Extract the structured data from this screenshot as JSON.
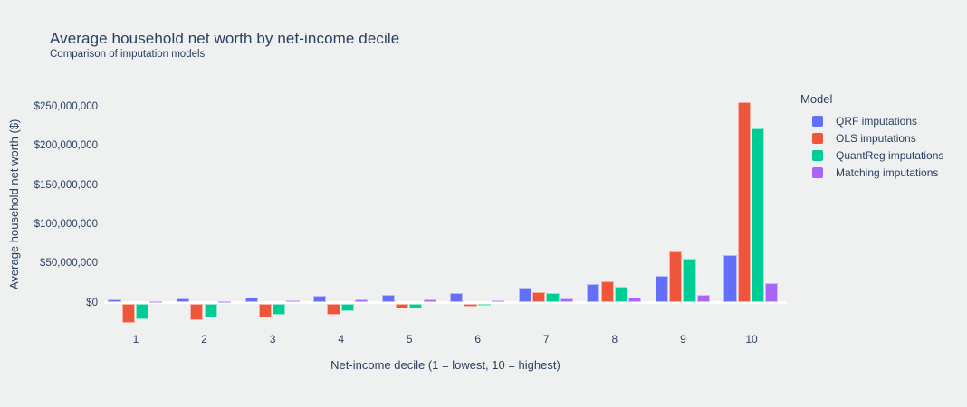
{
  "title": "Average household net worth by net-income decile",
  "subtitle": "Comparison of imputation models",
  "colors": {
    "background": "#eff0f0",
    "text": "#2a3f5f",
    "zero_line": "#ffffff",
    "qrf": "#636efa",
    "ols": "#ef553b",
    "quantreg": "#00cc96",
    "matching": "#ab63fa"
  },
  "chart_data": {
    "type": "bar",
    "title": "Average household net worth by net-income decile",
    "subtitle": "Comparison of imputation models",
    "xlabel": "Net-income decile (1 = lowest, 10 = highest)",
    "ylabel": "Average household net worth ($)",
    "categories": [
      "1",
      "2",
      "3",
      "4",
      "5",
      "6",
      "7",
      "8",
      "9",
      "10"
    ],
    "ylim": [
      -30000000,
      265000000
    ],
    "grid": false,
    "legend_position": "right",
    "legend_title": "Model",
    "yticks": [
      {
        "value": 0,
        "label": "$0"
      },
      {
        "value": 50000000,
        "label": "$50,000,000"
      },
      {
        "value": 100000000,
        "label": "$100,000,000"
      },
      {
        "value": 150000000,
        "label": "$150,000,000"
      },
      {
        "value": 200000000,
        "label": "$200,000,000"
      },
      {
        "value": 250000000,
        "label": "$250,000,000"
      }
    ],
    "series": [
      {
        "name": "QRF imputations",
        "color": "#636efa",
        "values": [
          3500000,
          5000000,
          6500000,
          8000000,
          10000000,
          12000000,
          19000000,
          23000000,
          34000000,
          60000000
        ]
      },
      {
        "name": "OLS imputations",
        "color": "#ef553b",
        "values": [
          -24000000,
          -20500000,
          -17000000,
          -14500000,
          -6000000,
          -4000000,
          12500000,
          27000000,
          65000000,
          255000000
        ]
      },
      {
        "name": "QuantReg imputations",
        "color": "#00cc96",
        "values": [
          -20000000,
          -17000000,
          -14500000,
          -10000000,
          -6000000,
          -1000000,
          11500000,
          19500000,
          55000000,
          221000000
        ]
      },
      {
        "name": "Matching imputations",
        "color": "#ab63fa",
        "values": [
          1000000,
          1500000,
          2500000,
          3500000,
          3500000,
          3000000,
          4500000,
          6000000,
          10000000,
          24000000
        ]
      }
    ]
  }
}
